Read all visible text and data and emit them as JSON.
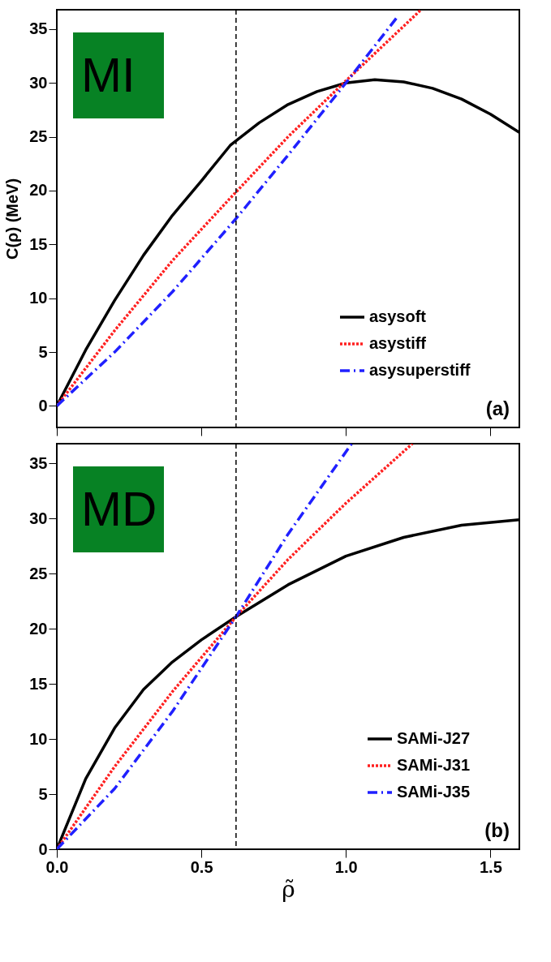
{
  "chart_data": [
    {
      "type": "line",
      "ylabel": "C(ρ) (MeV)",
      "xlim": [
        0,
        1.6
      ],
      "xticks": [
        0,
        0.5,
        1,
        1.5
      ],
      "ylim": [
        -2,
        36.8
      ],
      "yticks": [
        0,
        5,
        10,
        15,
        20,
        25,
        30,
        35
      ],
      "tick_labels": "y",
      "grid": false,
      "legend": "bottom right",
      "annotations": [
        "MI",
        "(a)"
      ],
      "ref_lines": [
        {
          "axis": "x",
          "value": 0.62,
          "color": "#000000",
          "line_style": "dashed"
        }
      ],
      "series": [
        {
          "name": "asysoft",
          "color": "#000000",
          "line_style": "solid",
          "x": [
            0,
            0.1,
            0.2,
            0.3,
            0.4,
            0.5,
            0.6,
            0.7,
            0.8,
            0.9,
            1.0,
            1.1,
            1.2,
            1.3,
            1.4,
            1.5,
            1.6
          ],
          "values": [
            0,
            5.2,
            9.8,
            14.0,
            17.7,
            20.9,
            24.2,
            26.3,
            28.0,
            29.2,
            30.0,
            30.3,
            30.1,
            29.5,
            28.5,
            27.1,
            25.4
          ]
        },
        {
          "name": "asystiff",
          "color": "#ff2020",
          "line_style": "dotted",
          "x": [
            0,
            0.2,
            0.4,
            0.6,
            0.8,
            1.0,
            1.26
          ],
          "values": [
            0,
            7.0,
            13.5,
            19.3,
            25.0,
            30.2,
            36.8
          ]
        },
        {
          "name": "asysuperstiff",
          "color": "#2020ff",
          "line_style": "dashed",
          "x": [
            0,
            0.2,
            0.4,
            0.62,
            0.8,
            1.0,
            1.18
          ],
          "values": [
            0,
            5.0,
            10.6,
            17.4,
            23.3,
            30.0,
            36.2
          ]
        }
      ]
    },
    {
      "type": "line",
      "xlabel": "ρ̃",
      "xlim": [
        0,
        1.6
      ],
      "xticks": [
        {
          "value": 0,
          "label": "0.0"
        },
        0.5,
        {
          "value": 1,
          "label": "1.0"
        },
        1.5
      ],
      "ylim": [
        0,
        36.8
      ],
      "yticks": [
        0,
        5,
        10,
        15,
        20,
        25,
        30,
        35
      ],
      "grid": false,
      "legend": "bottom right",
      "annotations": [
        "MD",
        "(b)"
      ],
      "ref_lines": [
        {
          "axis": "x",
          "value": 0.62,
          "color": "#000000",
          "line_style": "dashed"
        }
      ],
      "series": [
        {
          "name": "SAMi-J27",
          "color": "#000000",
          "line_style": "solid",
          "x": [
            0,
            0.1,
            0.2,
            0.3,
            0.4,
            0.5,
            0.62,
            0.8,
            1.0,
            1.2,
            1.4,
            1.6
          ],
          "values": [
            0,
            6.4,
            11.0,
            14.5,
            17.0,
            19.0,
            21.1,
            24.0,
            26.6,
            28.3,
            29.4,
            29.9
          ]
        },
        {
          "name": "SAMi-J31",
          "color": "#ff2020",
          "line_style": "dotted",
          "x": [
            0,
            0.2,
            0.4,
            0.62,
            0.8,
            1.0,
            1.23
          ],
          "values": [
            0,
            7.5,
            14.3,
            21.1,
            26.3,
            31.4,
            36.8
          ]
        },
        {
          "name": "SAMi-J35",
          "color": "#2020ff",
          "line_style": "dashed",
          "x": [
            0,
            0.2,
            0.4,
            0.62,
            0.8,
            1.02
          ],
          "values": [
            0,
            5.5,
            12.5,
            21.1,
            28.6,
            36.8
          ]
        }
      ]
    }
  ]
}
